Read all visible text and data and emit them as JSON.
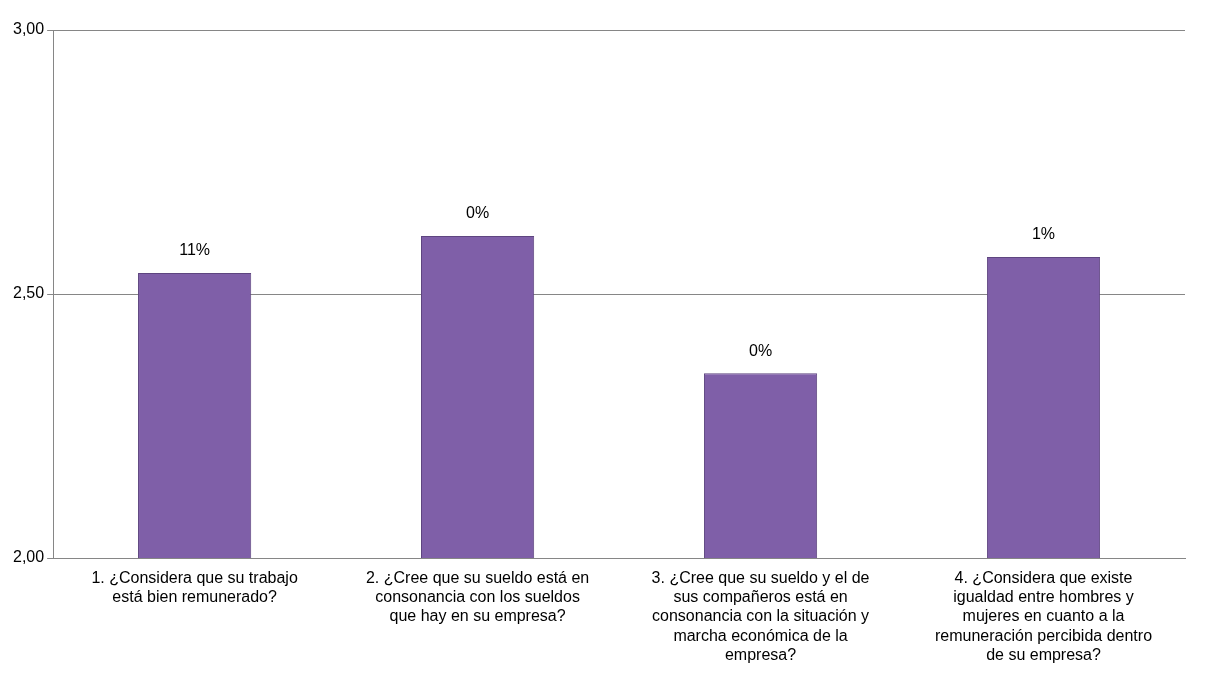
{
  "chart_data": {
    "type": "bar",
    "categories": [
      "1. ¿Considera que su trabajo está bien remunerado?",
      "2. ¿Cree que su sueldo está en consonancia con los sueldos que hay en su empresa?",
      "3. ¿Cree que su sueldo y el de sus compañeros está en consonancia con la situación y marcha económica de la empresa?",
      "4. ¿Considera que existe igualdad entre hombres y mujeres en cuanto a la remuneración percibida dentro de su empresa?"
    ],
    "values": [
      2.54,
      2.61,
      2.35,
      2.57
    ],
    "annotations": [
      {
        "text": "11%",
        "x": "1. ¿Considera que su trabajo está bien remunerado?",
        "y": 2.54
      },
      {
        "text": "0%",
        "x": "2. ¿Cree que su sueldo está en consonancia con los sueldos que hay en su empresa?",
        "y": 2.61
      },
      {
        "text": "0%",
        "x": "3. ¿Cree que su sueldo y el de sus compañeros está en consonancia con la situación y marcha económica de la empresa?",
        "y": 2.35
      },
      {
        "text": "1%",
        "x": "4. ¿Considera que existe igualdad entre hombres y mujeres en cuanto a la remuneración percibida dentro de su empresa?",
        "y": 2.57
      }
    ],
    "color": "#7f5fa8",
    "ylim": [
      2,
      3
    ],
    "yticks": [
      {
        "value": 2,
        "label": "2,00"
      },
      {
        "value": 2.5,
        "label": "2,50"
      },
      {
        "value": 3,
        "label": "3,00"
      }
    ],
    "grid": "y",
    "legend": false
  }
}
